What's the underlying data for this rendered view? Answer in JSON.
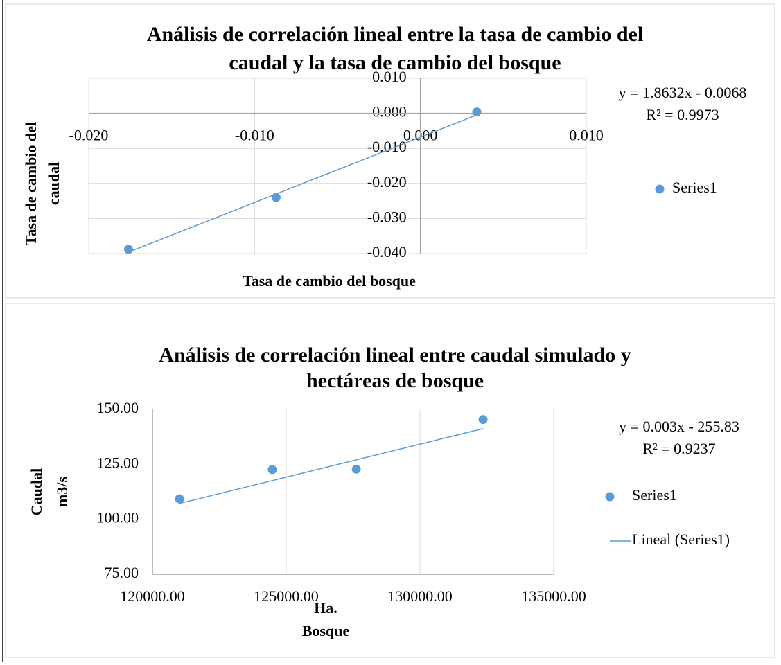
{
  "chart_data": [
    {
      "type": "scatter",
      "title": [
        "Análisis de correlación lineal entre la tasa de cambio del",
        "caudal y la tasa de cambio del bosque"
      ],
      "x_label": [
        "Tasa de cambio del bosque"
      ],
      "y_label": [
        "Tasa de cambio del",
        "caudal"
      ],
      "xlim": [
        -0.02,
        0.01
      ],
      "xticks": [
        {
          "value": -0.02,
          "label": "-0.020"
        },
        {
          "value": -0.01,
          "label": "-0.010"
        },
        {
          "value": 0,
          "label": "0.000"
        },
        {
          "value": 0.01,
          "label": "0.010"
        }
      ],
      "ylim": [
        -0.04,
        0.01
      ],
      "yticks": [
        {
          "value": -0.04,
          "label": "-0.040"
        },
        {
          "value": -0.03,
          "label": "-0.030"
        },
        {
          "value": -0.02,
          "label": "-0.020"
        },
        {
          "value": -0.01,
          "label": "-0.010"
        },
        {
          "value": 0,
          "label": "0.000"
        },
        {
          "value": 0.01,
          "label": "0.010"
        }
      ],
      "grid": true,
      "series": [
        {
          "name": "Series1",
          "color": "#5b9bd5",
          "x": [
            -0.0176,
            -0.0087,
            0.0034
          ],
          "values": [
            -0.0388,
            -0.024,
            0.0004
          ]
        }
      ],
      "trendline": {
        "slope": 1.8632,
        "intercept": -0.0068,
        "color": "#5b9bd5"
      },
      "equation": "y = 1.8632x - 0.0068",
      "r_squared": "R² = 0.9973"
    },
    {
      "type": "scatter",
      "title": [
        "Análisis de correlación lineal entre caudal simulado y",
        "hectáreas de bosque"
      ],
      "x_label": [
        "Ha.",
        "Bosque"
      ],
      "y_label": [
        "Caudal",
        "m3/s"
      ],
      "xlim": [
        120000,
        135000
      ],
      "xticks": [
        {
          "value": 120000,
          "label": "120000.00"
        },
        {
          "value": 125000,
          "label": "125000.00"
        },
        {
          "value": 130000,
          "label": "130000.00"
        },
        {
          "value": 135000,
          "label": "135000.00"
        }
      ],
      "ylim": [
        75,
        150
      ],
      "yticks": [
        {
          "value": 75,
          "label": "75.00"
        },
        {
          "value": 100,
          "label": "100.00"
        },
        {
          "value": 125,
          "label": "125.00"
        },
        {
          "value": 150,
          "label": "150.00"
        }
      ],
      "grid": true,
      "series": [
        {
          "name": "Series1",
          "color": "#5b9bd5",
          "x": [
            121010,
            124480,
            127620,
            132360
          ],
          "values": [
            109.3,
            122.6,
            122.8,
            145.4
          ]
        }
      ],
      "trendline": {
        "name": "Lineal (Series1)",
        "slope": 0.003,
        "intercept": -255.83,
        "color": "#5b9bd5"
      },
      "equation": "y = 0.003x - 255.83",
      "r_squared": "R² = 0.9237"
    }
  ]
}
